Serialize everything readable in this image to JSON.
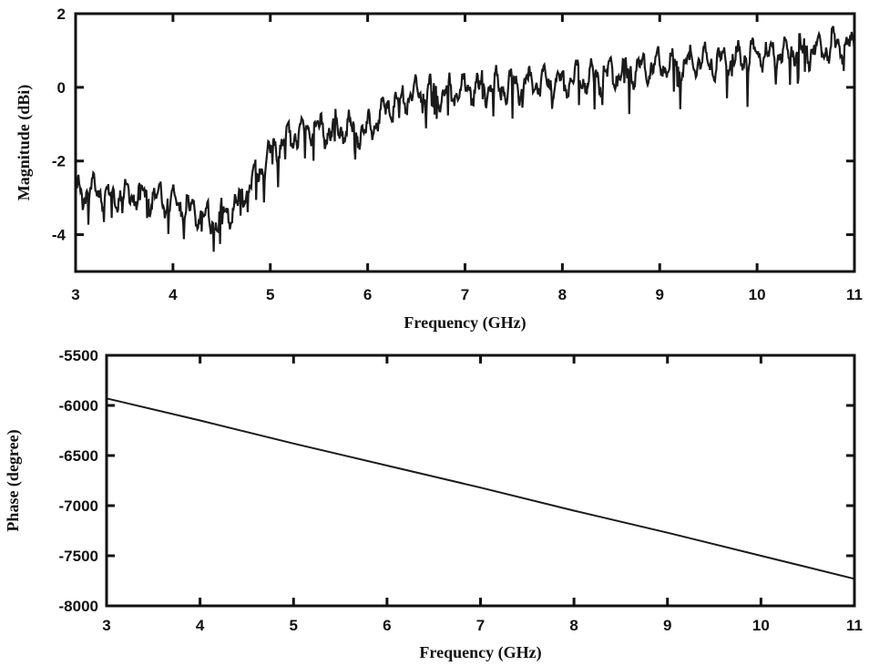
{
  "chart_data": [
    {
      "type": "line",
      "title": "",
      "xlabel": "Frequency (GHz)",
      "ylabel": "Magnitude (dBi)",
      "xlim": [
        3,
        11
      ],
      "ylim": [
        -5,
        2
      ],
      "xticks": [
        "3",
        "4",
        "5",
        "6",
        "7",
        "8",
        "9",
        "10",
        "11"
      ],
      "yticks": [
        "-4",
        "-2",
        "0",
        "2"
      ],
      "grid": false,
      "series": [
        {
          "x": [
            3.0,
            3.2,
            3.4,
            3.6,
            3.8,
            4.0,
            4.2,
            4.4,
            4.6,
            4.8,
            5.0,
            5.2,
            5.4,
            5.6,
            5.8,
            6.0,
            6.2,
            6.4,
            6.6,
            6.8,
            7.0,
            7.2,
            7.4,
            7.6,
            7.8,
            8.0,
            8.2,
            8.4,
            8.6,
            8.8,
            9.0,
            9.2,
            9.4,
            9.6,
            9.8,
            10.0,
            10.2,
            10.4,
            10.6,
            10.8,
            11.0
          ],
          "values": [
            -2.9,
            -2.8,
            -3.0,
            -2.9,
            -3.0,
            -3.1,
            -3.4,
            -3.6,
            -3.4,
            -2.6,
            -1.8,
            -1.3,
            -1.1,
            -1.2,
            -1.1,
            -1.2,
            -0.5,
            -0.3,
            -0.1,
            -0.2,
            0.0,
            0.0,
            0.0,
            0.1,
            0.1,
            0.2,
            0.2,
            0.3,
            0.4,
            0.5,
            0.6,
            0.6,
            0.7,
            0.7,
            0.8,
            0.9,
            0.9,
            1.0,
            1.0,
            1.1,
            1.1
          ]
        }
      ]
    },
    {
      "type": "line",
      "title": "",
      "xlabel": "Frequency (GHz)",
      "ylabel": "Phase (degree)",
      "xlim": [
        3,
        11
      ],
      "ylim": [
        -8000,
        -5500
      ],
      "xticks": [
        "3",
        "4",
        "5",
        "6",
        "7",
        "8",
        "9",
        "10",
        "11"
      ],
      "yticks": [
        "-8000",
        "-7500",
        "-7000",
        "-6500",
        "-6000",
        "-5500"
      ],
      "grid": false,
      "series": [
        {
          "x": [
            3,
            4,
            5,
            6,
            7,
            8,
            9,
            10,
            11
          ],
          "values": [
            -5930,
            -6150,
            -6380,
            -6600,
            -6820,
            -7050,
            -7270,
            -7500,
            -7730
          ]
        }
      ]
    }
  ]
}
